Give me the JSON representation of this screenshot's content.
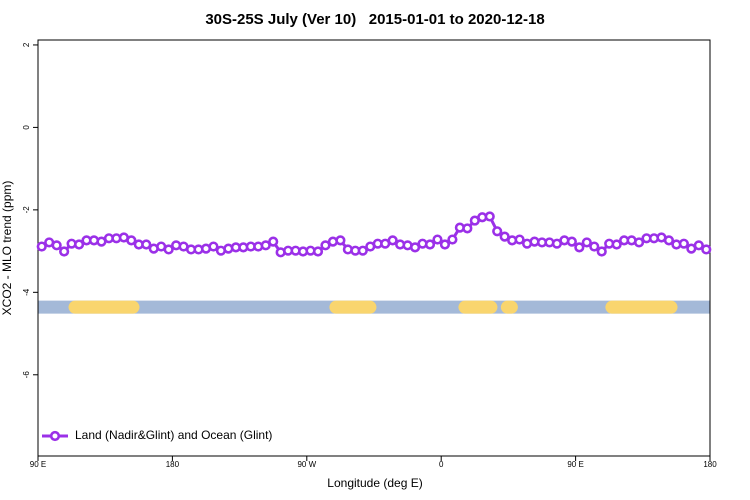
{
  "chart_data": {
    "type": "line",
    "title": "30S-25S July (Ver 10)   2015-01-01 to 2020-12-18",
    "x_label": "Longitude (deg E)",
    "y_label": "XCO2 - MLO trend (ppm)",
    "xlim": [
      90,
      540
    ],
    "ylim": [
      -7.97,
      2.12
    ],
    "xticks": [
      {
        "value": 90,
        "label": "90 E"
      },
      180,
      {
        "value": 270,
        "label": "90 W"
      },
      {
        "value": 360,
        "label": "0"
      },
      {
        "value": 450,
        "label": "90 E"
      },
      {
        "value": 540,
        "label": "180"
      }
    ],
    "yticks": [
      -6,
      -4,
      -2,
      0,
      2
    ],
    "legend": "bottom-left",
    "x": [
      92.5,
      97.5,
      102.5,
      107.5,
      112.5,
      117.5,
      122.5,
      127.5,
      132.5,
      137.5,
      142.5,
      147.5,
      152.5,
      157.5,
      162.5,
      167.5,
      172.5,
      177.5,
      182.5,
      187.5,
      192.5,
      197.5,
      202.5,
      207.5,
      212.5,
      217.5,
      222.5,
      227.5,
      232.5,
      237.5,
      242.5,
      247.5,
      252.5,
      257.5,
      262.5,
      267.5,
      272.5,
      277.5,
      282.5,
      287.5,
      292.5,
      297.5,
      302.5,
      307.5,
      312.5,
      317.5,
      322.5,
      327.5,
      332.5,
      337.5,
      342.5,
      347.5,
      352.5,
      357.5,
      362.5,
      367.5,
      372.5,
      377.5,
      382.5,
      387.5,
      392.5,
      397.5,
      402.5,
      407.5,
      412.5,
      417.5,
      422.5,
      427.5,
      432.5,
      437.5,
      442.5,
      447.5,
      452.5,
      457.5,
      462.5,
      467.5,
      472.5,
      477.5,
      482.5,
      487.5,
      492.5,
      497.5,
      502.5,
      507.5,
      512.5,
      517.5,
      522.5,
      527.5,
      532.5,
      537.5
    ],
    "series": [
      {
        "name": "Land (Nadir&Glint) and Ocean (Glint)",
        "color": "#9b30e8",
        "values": [
          -2.89,
          -2.79,
          -2.86,
          -3.01,
          -2.82,
          -2.84,
          -2.74,
          -2.74,
          -2.77,
          -2.69,
          -2.69,
          -2.67,
          -2.74,
          -2.84,
          -2.84,
          -2.94,
          -2.89,
          -2.96,
          -2.86,
          -2.89,
          -2.96,
          -2.96,
          -2.94,
          -2.89,
          -2.99,
          -2.94,
          -2.91,
          -2.91,
          -2.89,
          -2.89,
          -2.86,
          -2.77,
          -3.03,
          -2.99,
          -2.99,
          -3.01,
          -2.99,
          -3.01,
          -2.86,
          -2.77,
          -2.74,
          -2.96,
          -2.99,
          -2.99,
          -2.89,
          -2.82,
          -2.82,
          -2.74,
          -2.84,
          -2.86,
          -2.91,
          -2.82,
          -2.84,
          -2.72,
          -2.84,
          -2.72,
          -2.43,
          -2.45,
          -2.26,
          -2.18,
          -2.16,
          -2.52,
          -2.65,
          -2.74,
          -2.72,
          -2.82,
          -2.77,
          -2.79,
          -2.79,
          -2.82,
          -2.74,
          -2.77,
          -2.91,
          -2.79,
          -2.89,
          -3.01,
          -2.82,
          -2.84,
          -2.74,
          -2.74,
          -2.79,
          -2.69,
          -2.69,
          -2.67,
          -2.74,
          -2.84,
          -2.82,
          -2.94,
          -2.86,
          -2.96
        ]
      }
    ],
    "surface_band": {
      "y": -4.36,
      "ocean_color": "#a4b9d8",
      "land_color": "#f9d56e",
      "land_segments": [
        [
          114.8,
          153.6
        ],
        [
          289.5,
          312.3
        ],
        [
          375.9,
          393.3
        ],
        [
          404.3,
          407.0
        ],
        [
          474.3,
          513.9
        ]
      ]
    }
  }
}
